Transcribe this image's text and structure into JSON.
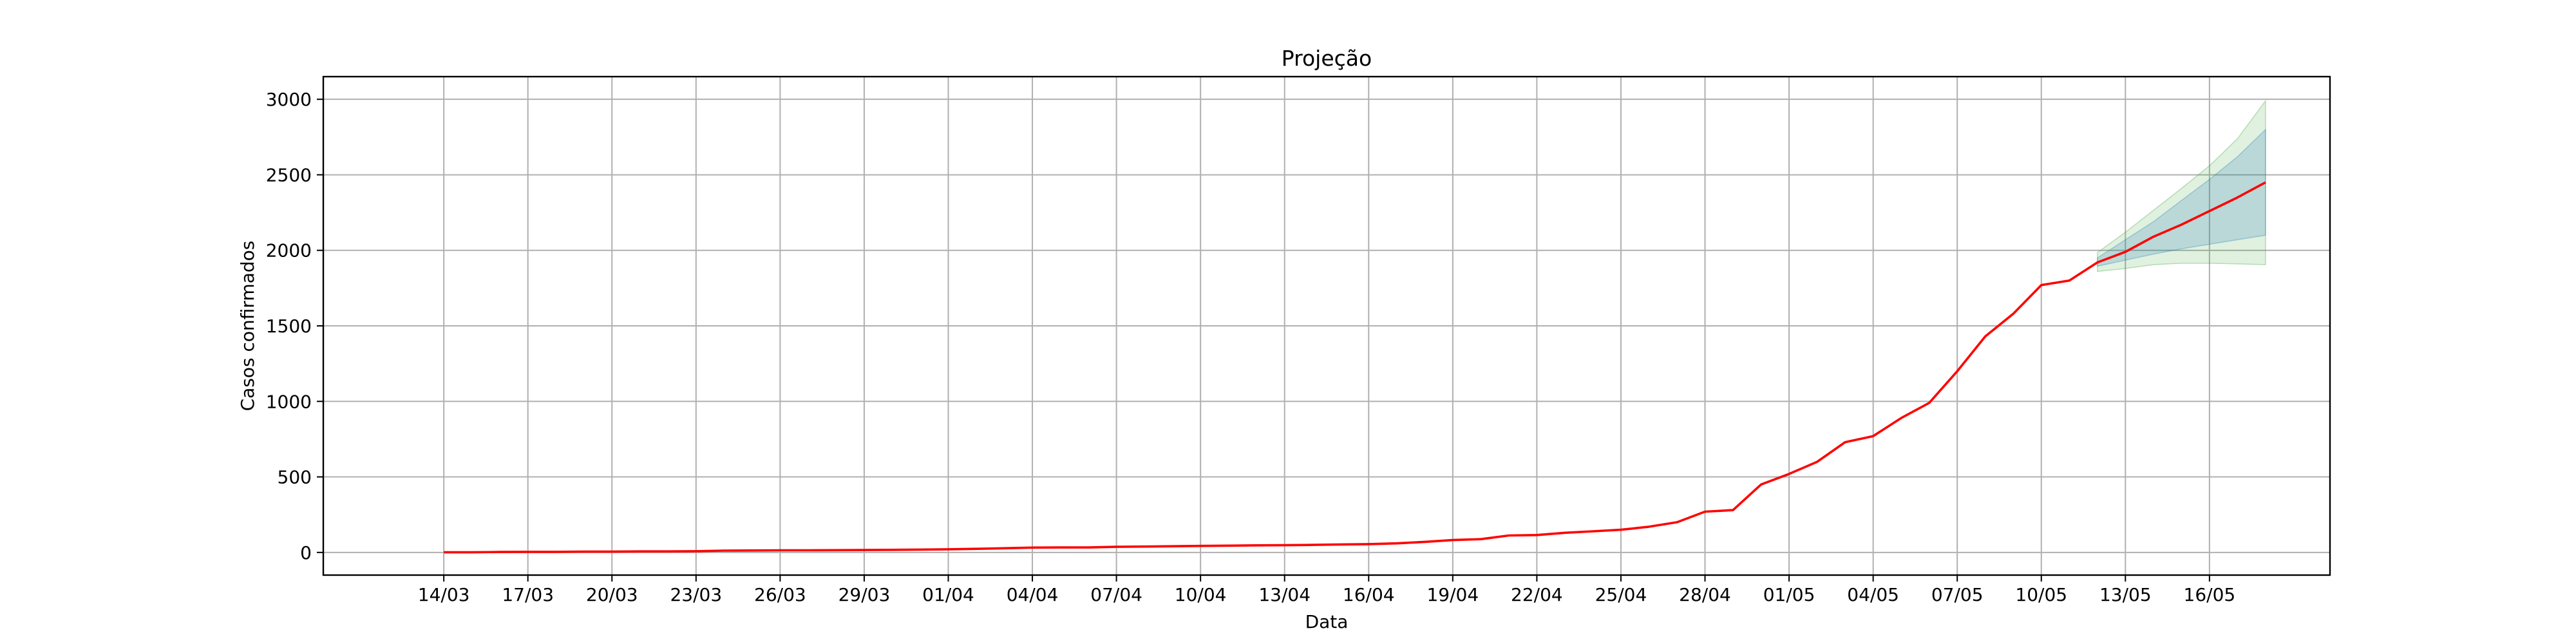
{
  "chart_data": {
    "type": "line",
    "title": "Projeção",
    "xlabel": "Data",
    "ylabel": "Casos confirmados",
    "ylim": [
      -150,
      3150
    ],
    "yticks": [
      0,
      500,
      1000,
      1500,
      2000,
      2500,
      3000
    ],
    "xlim": [
      -4.3,
      67.3
    ],
    "xticks": [
      {
        "pos": 0,
        "label": "14/03"
      },
      {
        "pos": 3,
        "label": "17/03"
      },
      {
        "pos": 6,
        "label": "20/03"
      },
      {
        "pos": 9,
        "label": "23/03"
      },
      {
        "pos": 12,
        "label": "26/03"
      },
      {
        "pos": 15,
        "label": "29/03"
      },
      {
        "pos": 18,
        "label": "01/04"
      },
      {
        "pos": 21,
        "label": "04/04"
      },
      {
        "pos": 24,
        "label": "07/04"
      },
      {
        "pos": 27,
        "label": "10/04"
      },
      {
        "pos": 30,
        "label": "13/04"
      },
      {
        "pos": 33,
        "label": "16/04"
      },
      {
        "pos": 36,
        "label": "19/04"
      },
      {
        "pos": 39,
        "label": "22/04"
      },
      {
        "pos": 42,
        "label": "25/04"
      },
      {
        "pos": 45,
        "label": "28/04"
      },
      {
        "pos": 48,
        "label": "01/05"
      },
      {
        "pos": 51,
        "label": "04/05"
      },
      {
        "pos": 54,
        "label": "07/05"
      },
      {
        "pos": 57,
        "label": "10/05"
      },
      {
        "pos": 60,
        "label": "13/05"
      },
      {
        "pos": 63,
        "label": "16/05"
      }
    ],
    "grid": true,
    "colors": {
      "line": "#ff0000",
      "band_outer": "#2ca02c",
      "band_inner": "#1f77b4",
      "grid": "#b0b0b0"
    },
    "series": {
      "x": [
        0,
        1,
        2,
        3,
        4,
        5,
        6,
        7,
        8,
        9,
        10,
        11,
        12,
        13,
        14,
        15,
        16,
        17,
        18,
        19,
        20,
        21,
        22,
        23,
        24,
        25,
        26,
        27,
        28,
        29,
        30,
        31,
        32,
        33,
        34,
        35,
        36,
        37,
        38,
        39,
        40,
        41,
        42,
        43,
        44,
        45,
        46,
        47,
        48,
        49,
        50,
        51,
        52,
        53,
        54,
        55,
        56,
        57,
        58,
        59,
        60,
        61,
        62,
        63,
        64,
        65
      ],
      "y": [
        1,
        1,
        3,
        4,
        4,
        5,
        5,
        7,
        7,
        8,
        12,
        13,
        14,
        14,
        15,
        16,
        17,
        19,
        21,
        24,
        28,
        32,
        33,
        33,
        37,
        39,
        41,
        43,
        45,
        47,
        48,
        50,
        53,
        55,
        60,
        70,
        82,
        88,
        112,
        115,
        130,
        140,
        150,
        170,
        200,
        270,
        280,
        450,
        520,
        600,
        730,
        770,
        890,
        990,
        1200,
        1430,
        1580,
        1770,
        1800,
        1920,
        1990,
        2090,
        2170,
        2260,
        2350,
        2450
      ]
    },
    "projection_bands": {
      "x": [
        59,
        60,
        61,
        62,
        63,
        64,
        65
      ],
      "outer_lower": [
        1860,
        1880,
        1905,
        1915,
        1915,
        1910,
        1905
      ],
      "outer_upper": [
        1985,
        2120,
        2265,
        2410,
        2560,
        2740,
        2990
      ],
      "inner_lower": [
        1895,
        1935,
        1975,
        2010,
        2040,
        2070,
        2100
      ],
      "inner_upper": [
        1950,
        2070,
        2190,
        2330,
        2470,
        2620,
        2800
      ]
    }
  }
}
